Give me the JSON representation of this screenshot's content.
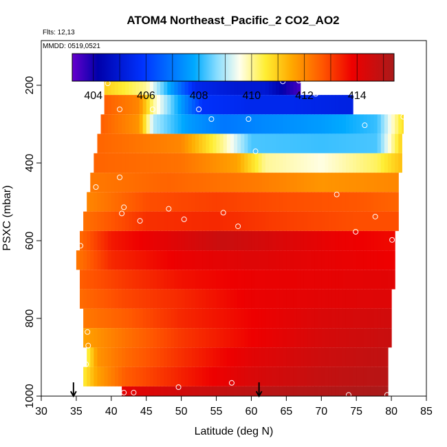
{
  "chart_data": {
    "type": "heatmap",
    "title": "ATOM4 Northeast_Pacific_2 CO2_AO2",
    "annotations": {
      "flights": "Flts: 12,13",
      "dates": "MMDD: 0519,0521"
    },
    "xlabel": "Latitude (deg N)",
    "ylabel": "PSXC (mbar)",
    "xlim": [
      30,
      85
    ],
    "ylim": [
      1000,
      85
    ],
    "x_ticks": [
      30,
      35,
      40,
      45,
      50,
      55,
      60,
      65,
      70,
      75,
      80,
      85
    ],
    "y_ticks": [
      200,
      400,
      600,
      800,
      1000
    ],
    "colorbar": {
      "range": [
        403.2,
        415.4
      ],
      "tick_values": [
        404,
        406,
        408,
        410,
        412,
        414
      ],
      "colors": [
        "#6600cc",
        "#0000aa",
        "#0033ff",
        "#00aaff",
        "#88ddff",
        "#ffffee",
        "#ffee33",
        "#ffaa00",
        "#ff5500",
        "#ee0000",
        "#aa1a1a"
      ],
      "color_positions": [
        0,
        0.08,
        0.22,
        0.38,
        0.45,
        0.52,
        0.6,
        0.68,
        0.78,
        0.87,
        1
      ]
    },
    "layers": [
      {
        "p": 200,
        "lat_min": 39,
        "lat_max": 67,
        "values": [
          [
            39,
            411
          ],
          [
            45,
            410
          ],
          [
            48,
            408
          ],
          [
            52,
            405.5
          ],
          [
            58,
            405
          ],
          [
            62,
            405
          ],
          [
            65,
            404
          ],
          [
            67,
            403.5
          ]
        ]
      },
      {
        "p": 250,
        "lat_min": 39,
        "lat_max": 74.5,
        "values": [
          [
            39,
            412.6
          ],
          [
            44,
            412
          ],
          [
            46,
            410
          ],
          [
            50,
            407.6
          ],
          [
            53,
            405.8
          ],
          [
            60,
            405.5
          ],
          [
            66,
            405.5
          ],
          [
            74,
            405.3
          ]
        ]
      },
      {
        "p": 300,
        "lat_min": 38.5,
        "lat_max": 81.7,
        "values": [
          [
            38.5,
            412.6
          ],
          [
            44,
            411.8
          ],
          [
            46,
            409
          ],
          [
            51,
            407.6
          ],
          [
            56,
            407
          ],
          [
            62,
            407.3
          ],
          [
            70,
            407.6
          ],
          [
            78,
            408.2
          ],
          [
            81.7,
            410.8
          ]
        ]
      },
      {
        "p": 350,
        "lat_min": 38,
        "lat_max": 81.5,
        "values": [
          [
            38,
            412.5
          ],
          [
            50,
            412
          ],
          [
            56,
            410
          ],
          [
            60,
            408.3
          ],
          [
            70,
            408.2
          ],
          [
            78,
            408.3
          ],
          [
            81.5,
            411
          ]
        ]
      },
      {
        "p": 400,
        "lat_min": 37.5,
        "lat_max": 81.5,
        "values": [
          [
            37.5,
            412.5
          ],
          [
            50,
            412.3
          ],
          [
            58,
            411.6
          ],
          [
            62,
            410
          ],
          [
            70,
            409.6
          ],
          [
            78,
            410.3
          ],
          [
            81.5,
            411.2
          ]
        ]
      },
      {
        "p": 450,
        "lat_min": 37,
        "lat_max": 81,
        "values": [
          [
            37,
            412.2
          ],
          [
            48,
            412.5
          ],
          [
            60,
            412.2
          ],
          [
            70,
            411.8
          ],
          [
            81,
            412
          ]
        ]
      },
      {
        "p": 500,
        "lat_min": 36.5,
        "lat_max": 81,
        "values": [
          [
            36.5,
            412
          ],
          [
            45,
            412.8
          ],
          [
            55,
            413
          ],
          [
            65,
            412.8
          ],
          [
            75,
            412.7
          ],
          [
            81,
            412.5
          ]
        ]
      },
      {
        "p": 550,
        "lat_min": 36,
        "lat_max": 81,
        "values": [
          [
            36,
            412.3
          ],
          [
            45,
            413.2
          ],
          [
            55,
            413.3
          ],
          [
            65,
            413
          ],
          [
            75,
            412.8
          ],
          [
            81,
            412.8
          ]
        ]
      },
      {
        "p": 600,
        "lat_min": 35.5,
        "lat_max": 80.5,
        "values": [
          [
            35.5,
            412.4
          ],
          [
            40,
            413.5
          ],
          [
            48,
            414.1
          ],
          [
            56,
            414.7
          ],
          [
            64,
            414.3
          ],
          [
            72,
            413.9
          ],
          [
            80.5,
            413.7
          ]
        ]
      },
      {
        "p": 650,
        "lat_min": 35,
        "lat_max": 80.5,
        "values": [
          [
            35,
            412.2
          ],
          [
            40,
            413.3
          ],
          [
            50,
            413.9
          ],
          [
            60,
            414.2
          ],
          [
            70,
            414
          ],
          [
            80.5,
            413.8
          ]
        ]
      },
      {
        "p": 700,
        "lat_min": 35.5,
        "lat_max": 80.5,
        "values": [
          [
            35.5,
            412.6
          ],
          [
            42,
            413.1
          ],
          [
            50,
            413.6
          ],
          [
            60,
            413.9
          ],
          [
            70,
            414
          ],
          [
            80.5,
            414.1
          ]
        ]
      },
      {
        "p": 750,
        "lat_min": 35.5,
        "lat_max": 80,
        "values": [
          [
            35.5,
            412.4
          ],
          [
            42,
            412.9
          ],
          [
            50,
            413.3
          ],
          [
            60,
            413.9
          ],
          [
            70,
            414.1
          ],
          [
            80,
            414.2
          ]
        ]
      },
      {
        "p": 800,
        "lat_min": 36,
        "lat_max": 80,
        "values": [
          [
            36,
            412.2
          ],
          [
            42,
            412.6
          ],
          [
            50,
            413.3
          ],
          [
            60,
            413.8
          ],
          [
            70,
            414.3
          ],
          [
            80,
            414.5
          ]
        ]
      },
      {
        "p": 850,
        "lat_min": 36,
        "lat_max": 80,
        "values": [
          [
            36,
            411.6
          ],
          [
            42,
            412.3
          ],
          [
            50,
            413.1
          ],
          [
            60,
            413.8
          ],
          [
            70,
            414.4
          ],
          [
            80,
            414.7
          ]
        ]
      },
      {
        "p": 900,
        "lat_min": 36.5,
        "lat_max": 79.5,
        "values": [
          [
            36.5,
            410.3
          ],
          [
            38,
            411.8
          ],
          [
            42,
            412.4
          ],
          [
            50,
            413.2
          ],
          [
            60,
            414.1
          ],
          [
            70,
            414.6
          ],
          [
            79.5,
            414.9
          ]
        ]
      },
      {
        "p": 950,
        "lat_min": 36,
        "lat_max": 79.5,
        "values": [
          [
            36,
            410.5
          ],
          [
            38,
            411.6
          ],
          [
            42,
            412.6
          ],
          [
            50,
            413.4
          ],
          [
            60,
            414.3
          ],
          [
            70,
            414.8
          ],
          [
            79.5,
            415.1
          ]
        ]
      },
      {
        "p": 1000,
        "lat_min": 41.5,
        "lat_max": 79.5,
        "values": [
          [
            41.5,
            414
          ],
          [
            50,
            414.5
          ],
          [
            60,
            415
          ],
          [
            70,
            415.2
          ],
          [
            79.5,
            415.4
          ]
        ]
      }
    ],
    "sample_points": [
      [
        39.5,
        195
      ],
      [
        64.5,
        190
      ],
      [
        66.8,
        188
      ],
      [
        69.2,
        222
      ],
      [
        41.2,
        262
      ],
      [
        45.9,
        262
      ],
      [
        52.5,
        262
      ],
      [
        54.3,
        287
      ],
      [
        59.6,
        287
      ],
      [
        76.2,
        303
      ],
      [
        81.7,
        281
      ],
      [
        60.6,
        370
      ],
      [
        37.8,
        462
      ],
      [
        41.2,
        437
      ],
      [
        41.8,
        514
      ],
      [
        41.5,
        530
      ],
      [
        44.1,
        549
      ],
      [
        48.2,
        518
      ],
      [
        50.4,
        545
      ],
      [
        56,
        528
      ],
      [
        58.1,
        563
      ],
      [
        72.2,
        481
      ],
      [
        77.7,
        538
      ],
      [
        74.9,
        577
      ],
      [
        80.1,
        598
      ],
      [
        35.6,
        613
      ],
      [
        36.6,
        835
      ],
      [
        36.7,
        870
      ],
      [
        36.4,
        918
      ],
      [
        41.8,
        991
      ],
      [
        43.2,
        991
      ],
      [
        49.6,
        977
      ],
      [
        57.2,
        966
      ],
      [
        73.9,
        997
      ],
      [
        79.4,
        997
      ]
    ],
    "arrows_lat": [
      34.6,
      61.1
    ]
  }
}
